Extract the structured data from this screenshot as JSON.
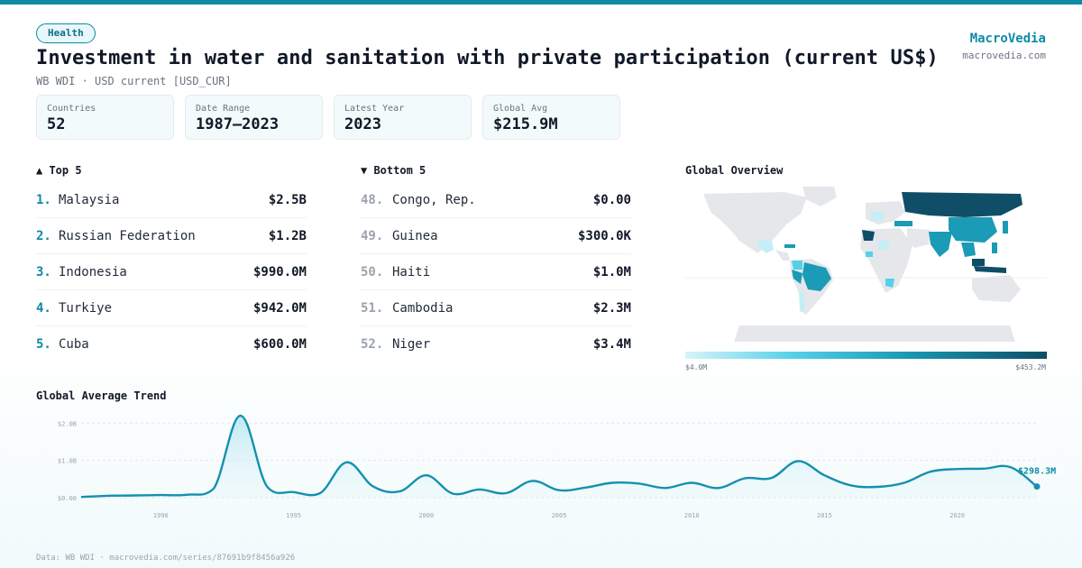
{
  "header": {
    "badge": "Health",
    "title": "Investment in water and sanitation with private participation (current US$)",
    "subtitle": "WB WDI · USD current [USD_CUR]"
  },
  "brand": {
    "name": "MacroVedia",
    "url": "macrovedia.com"
  },
  "stats": [
    {
      "label": "Countries",
      "value": "52"
    },
    {
      "label": "Date Range",
      "value": "1987–2023"
    },
    {
      "label": "Latest Year",
      "value": "2023"
    },
    {
      "label": "Global Avg",
      "value": "$215.9M"
    }
  ],
  "top5": {
    "title": "▲ Top 5",
    "rows": [
      {
        "rank": "1.",
        "name": "Malaysia",
        "value": "$2.5B"
      },
      {
        "rank": "2.",
        "name": "Russian Federation",
        "value": "$1.2B"
      },
      {
        "rank": "3.",
        "name": "Indonesia",
        "value": "$990.0M"
      },
      {
        "rank": "4.",
        "name": "Turkiye",
        "value": "$942.0M"
      },
      {
        "rank": "5.",
        "name": "Cuba",
        "value": "$600.0M"
      }
    ]
  },
  "bottom5": {
    "title": "▼ Bottom 5",
    "rows": [
      {
        "rank": "48.",
        "name": "Congo, Rep.",
        "value": "$0.00"
      },
      {
        "rank": "49.",
        "name": "Guinea",
        "value": "$300.0K"
      },
      {
        "rank": "50.",
        "name": "Haiti",
        "value": "$1.0M"
      },
      {
        "rank": "51.",
        "name": "Cambodia",
        "value": "$2.3M"
      },
      {
        "rank": "52.",
        "name": "Niger",
        "value": "$3.4M"
      }
    ]
  },
  "map": {
    "title": "Global Overview",
    "legend_min": "$4.0M",
    "legend_max": "$453.2M",
    "colors": {
      "no_data": "#e5e7eb",
      "low": "#d8f4fa",
      "mid": "#1b9bb5",
      "high": "#0f4e66"
    }
  },
  "trend": {
    "title": "Global Average Trend"
  },
  "footer": "Data: WB WDI · macrovedia.com/series/87691b9f8456a926",
  "colors": {
    "accent": "#0e8aa4",
    "line": "#1490b0",
    "fill": "#d6f2f8"
  },
  "chart_data": {
    "type": "area",
    "title": "Global Average Trend",
    "x": [
      1987,
      1988,
      1989,
      1990,
      1991,
      1992,
      1993,
      1994,
      1995,
      1996,
      1997,
      1998,
      1999,
      2000,
      2001,
      2002,
      2003,
      2004,
      2005,
      2006,
      2007,
      2008,
      2009,
      2010,
      2011,
      2012,
      2013,
      2014,
      2015,
      2016,
      2017,
      2018,
      2019,
      2020,
      2021,
      2022,
      2023
    ],
    "values": [
      20000000,
      50000000,
      60000000,
      70000000,
      80000000,
      250000000,
      2200000000,
      300000000,
      150000000,
      120000000,
      950000000,
      300000000,
      170000000,
      600000000,
      110000000,
      220000000,
      120000000,
      450000000,
      200000000,
      270000000,
      400000000,
      380000000,
      260000000,
      400000000,
      260000000,
      520000000,
      530000000,
      980000000,
      600000000,
      330000000,
      290000000,
      400000000,
      700000000,
      770000000,
      780000000,
      820000000,
      298300000
    ],
    "ylim": [
      0,
      2300000000
    ],
    "y_ticks": [
      {
        "value": 0,
        "label": "$0.00"
      },
      {
        "value": 1000000000,
        "label": "$1.0B"
      },
      {
        "value": 2000000000,
        "label": "$2.0B"
      }
    ],
    "x_ticks": [
      "1990",
      "1995",
      "2000",
      "2005",
      "2010",
      "2015",
      "2020"
    ],
    "last_label": "$298.3M",
    "grid": true
  }
}
